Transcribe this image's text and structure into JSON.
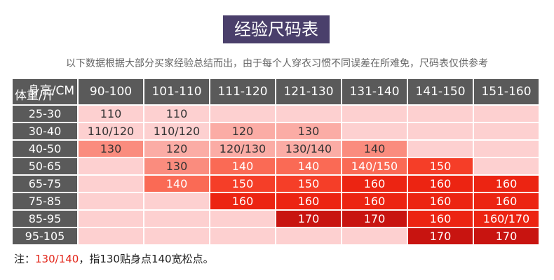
{
  "header": {
    "title": "经验尺码表",
    "subtitle": "以下数据根据大部分买家经验总结而出，由于每个人穿衣习惯不同误差在所难免，尺码表仅供参考"
  },
  "table": {
    "corner_top": "身高/CM",
    "corner_bottom": "体重/斤",
    "columns": [
      "90-100",
      "101-110",
      "111-120",
      "121-130",
      "131-140",
      "141-150",
      "151-160"
    ],
    "rows": [
      {
        "label": "25-30",
        "cells": [
          "110",
          "110",
          null,
          null,
          null,
          null,
          null
        ],
        "colors": [
          "#fdd0d0",
          "#fdd0d0",
          "#fdd0d0",
          "#fdd0d0",
          "#fdd0d0",
          "#fdd0d0",
          "#fdd0d0"
        ]
      },
      {
        "label": "30-40",
        "cells": [
          "110/120",
          "110/120",
          "120",
          "130",
          null,
          null,
          null
        ],
        "colors": [
          "#fdd0d0",
          "#fdd0d0",
          "#fbaca5",
          "#fbaca5",
          "#fdd0d0",
          "#fdd0d0",
          "#fdd0d0"
        ]
      },
      {
        "label": "40-50",
        "cells": [
          "130",
          "120",
          "120/130",
          "130/140",
          "140",
          null,
          null
        ],
        "colors": [
          "#fa8c7e",
          "#fbaca5",
          "#fbaca5",
          "#fbaca5",
          "#fa8c7e",
          "#fdd0d0",
          "#fdd0d0"
        ]
      },
      {
        "label": "50-65",
        "cells": [
          null,
          "130",
          "140",
          "140",
          "140/150",
          "150",
          null
        ],
        "colors": [
          "#fdd0d0",
          "#fa8c7e",
          "#fa6a55",
          "#fa6a55",
          "#fa6a55",
          "#f53e28",
          "#fdd0d0"
        ]
      },
      {
        "label": "65-75",
        "cells": [
          null,
          "140",
          "150",
          "150",
          "160",
          "160",
          "160"
        ],
        "colors": [
          "#fdd0d0",
          "#fa6a55",
          "#f53e28",
          "#f53e28",
          "#ec2412",
          "#ec2412",
          "#ec2412"
        ]
      },
      {
        "label": "75-85",
        "cells": [
          null,
          null,
          "160",
          "160",
          "160",
          "160",
          "160"
        ],
        "colors": [
          "#fdd0d0",
          "#fdd0d0",
          "#ec2412",
          "#ec2412",
          "#ec2412",
          "#ec2412",
          "#ec2412"
        ]
      },
      {
        "label": "85-95",
        "cells": [
          null,
          null,
          null,
          "170",
          "170",
          "160",
          "160/170"
        ],
        "colors": [
          "#fdd0d0",
          "#fdd0d0",
          "#fdd0d0",
          "#c81410",
          "#c81410",
          "#ec2412",
          "#ec2412"
        ]
      },
      {
        "label": "95-105",
        "cells": [
          null,
          null,
          null,
          null,
          null,
          "170",
          "170"
        ],
        "colors": [
          "#fdd0d0",
          "#fdd0d0",
          "#fdd0d0",
          "#fdd0d0",
          "#fdd0d0",
          "#c81410",
          "#c81410"
        ]
      }
    ]
  },
  "note": {
    "prefix": "注：",
    "highlight": "130/140",
    "text": "，指130贴身点140宽松点。"
  }
}
